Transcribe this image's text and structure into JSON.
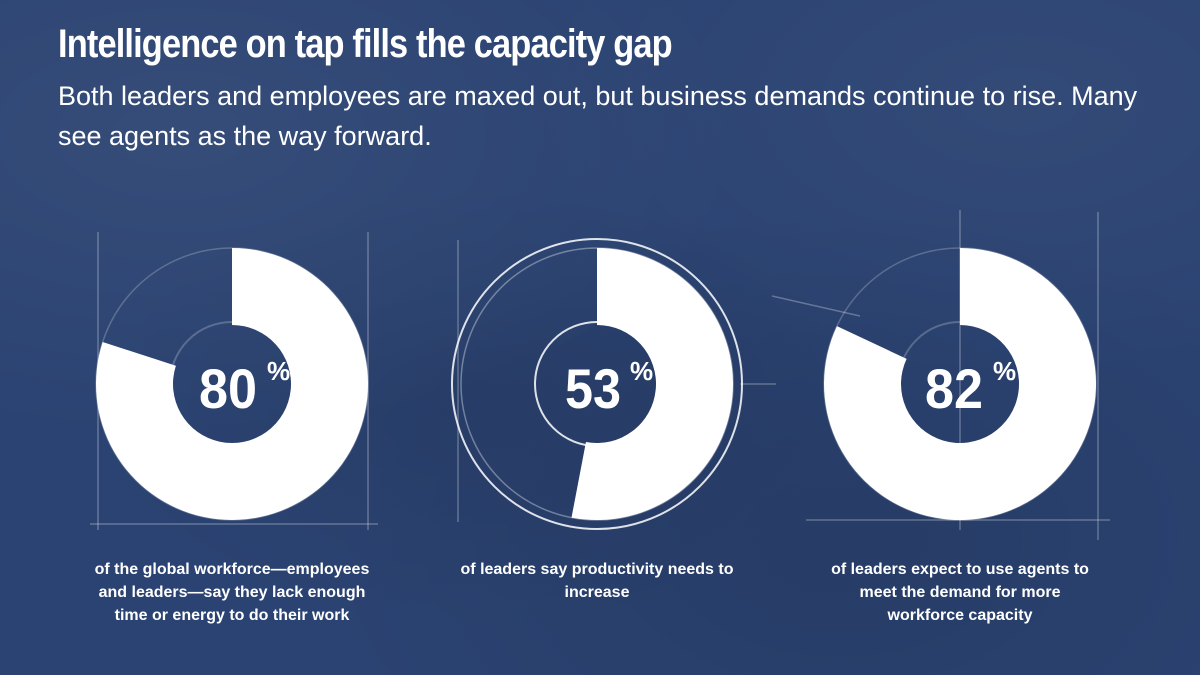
{
  "header": {
    "title": "Intelligence on tap fills the capacity gap",
    "subtitle": "Both leaders and employees are maxed out, but business demands continue to rise. Many see agents as the way forward."
  },
  "colors": {
    "background": "#2b4372",
    "ring": "#ffffff",
    "hole": "#2b4372"
  },
  "chart_data": [
    {
      "type": "pie",
      "value": 80,
      "label": "80",
      "unit": "%",
      "caption": "of the global workforce—employees and leaders—say they lack enough time or energy to do their work"
    },
    {
      "type": "pie",
      "value": 53,
      "label": "53",
      "unit": "%",
      "caption": "of leaders say productivity needs to increase"
    },
    {
      "type": "pie",
      "value": 82,
      "label": "82",
      "unit": "%",
      "caption": "of leaders expect to use agents to meet the demand for more workforce capacity"
    }
  ]
}
